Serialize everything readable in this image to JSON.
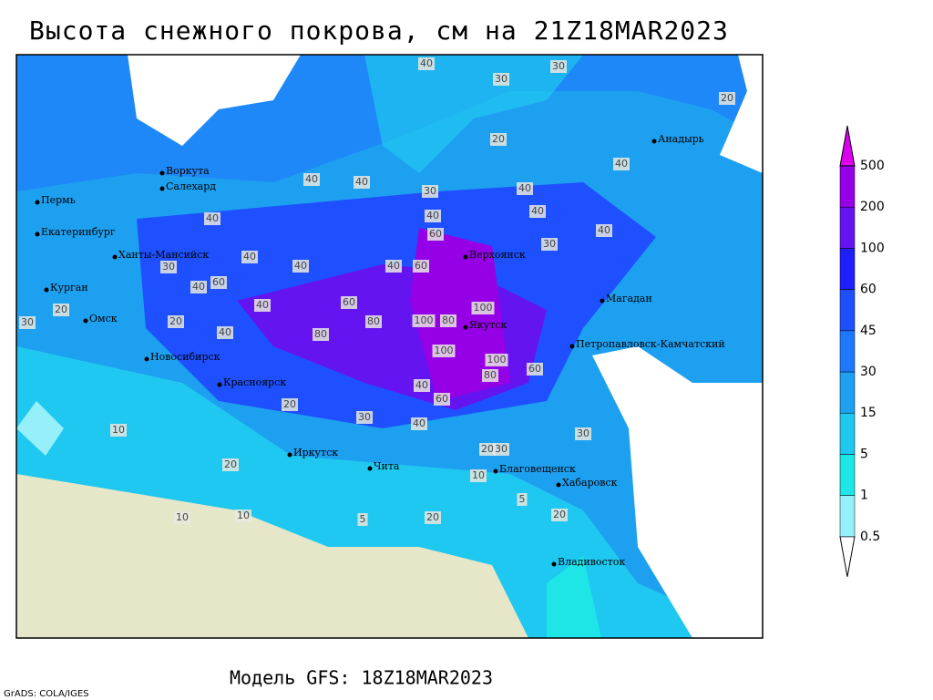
{
  "title": "Высота снежного покрова, см на 21Z18MAR2023",
  "model_label": "Модель GFS: 18Z18MAR2023",
  "credit": "GrADS: COLA/IGES",
  "legend": {
    "levels": [
      0.5,
      1,
      5,
      15,
      30,
      45,
      60,
      100,
      200,
      500
    ],
    "colors": [
      "#ffffff",
      "#96f0fa",
      "#1ee6e6",
      "#1ec8f0",
      "#1ea0f0",
      "#1e78ff",
      "#1e50ff",
      "#1e1eff",
      "#6414f0",
      "#9600e6",
      "#dc00f0"
    ]
  },
  "cities": [
    "Воркута",
    "Салехард",
    "Пермь",
    "Екатеринбург",
    "Ханты-Мансийск",
    "Курган",
    "Омск",
    "Новосибирск",
    "Красноярск",
    "Верхоянск",
    "Якутск",
    "Магадан",
    "Анадырь",
    "Петропавловск-Камчатский",
    "Иркутск",
    "Чита",
    "Благовещенск",
    "Хабаровск",
    "Владивосток"
  ],
  "map_labels": [
    "40",
    "30",
    "30",
    "20",
    "20",
    "40",
    "40",
    "30",
    "40",
    "40",
    "40",
    "40",
    "60",
    "40",
    "40",
    "30",
    "40",
    "60",
    "40",
    "40",
    "30",
    "40",
    "60",
    "20",
    "30",
    "20",
    "40",
    "60",
    "100",
    "100",
    "80",
    "80",
    "80",
    "40",
    "100",
    "100",
    "80",
    "60",
    "60",
    "40",
    "20",
    "30",
    "40",
    "10",
    "30",
    "20",
    "10",
    "5",
    "20",
    "20",
    "10",
    "10",
    "5",
    "20",
    "30"
  ]
}
